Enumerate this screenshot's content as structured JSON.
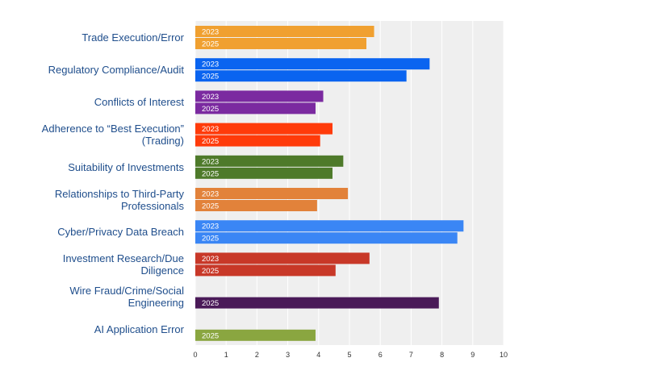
{
  "chart_data": {
    "type": "bar",
    "orientation": "horizontal",
    "title": "",
    "xlabel": "",
    "ylabel": "",
    "xlim": [
      0,
      10
    ],
    "ticks": [
      "0",
      "1",
      "2",
      "3",
      "4",
      "5",
      "6",
      "7",
      "8",
      "9",
      "10"
    ],
    "categories": [
      {
        "label": [
          "Trade Execution/Error"
        ],
        "color": "#f0a030",
        "bars": [
          {
            "year": "2023",
            "value": 5.8
          },
          {
            "year": "2025",
            "value": 5.55
          }
        ]
      },
      {
        "label": [
          "Regulatory Compliance/Audit"
        ],
        "color": "#0a64f0",
        "bars": [
          {
            "year": "2023",
            "value": 7.6
          },
          {
            "year": "2025",
            "value": 6.85
          }
        ]
      },
      {
        "label": [
          "Conflicts of Interest"
        ],
        "color": "#7b2aa0",
        "bars": [
          {
            "year": "2023",
            "value": 4.15
          },
          {
            "year": "2025",
            "value": 3.9
          }
        ]
      },
      {
        "label": [
          "Adherence to “Best Execution”",
          "(Trading)"
        ],
        "color": "#ff3b0a",
        "bars": [
          {
            "year": "2023",
            "value": 4.45
          },
          {
            "year": "2025",
            "value": 4.05
          }
        ]
      },
      {
        "label": [
          "Suitability of Investments"
        ],
        "color": "#4e7a2a",
        "bars": [
          {
            "year": "2023",
            "value": 4.8
          },
          {
            "year": "2025",
            "value": 4.45
          }
        ]
      },
      {
        "label": [
          "Relationships to Third-Party",
          "Professionals"
        ],
        "color": "#e2823a",
        "bars": [
          {
            "year": "2023",
            "value": 4.95
          },
          {
            "year": "2025",
            "value": 3.95
          }
        ]
      },
      {
        "label": [
          "Cyber/Privacy Data Breach"
        ],
        "color": "#3a86f5",
        "bars": [
          {
            "year": "2023",
            "value": 8.7
          },
          {
            "year": "2025",
            "value": 8.5
          }
        ]
      },
      {
        "label": [
          "Investment Research/Due",
          "Diligence"
        ],
        "color": "#c83828",
        "bars": [
          {
            "year": "2023",
            "value": 5.65
          },
          {
            "year": "2025",
            "value": 4.55
          }
        ]
      },
      {
        "label": [
          "Wire Fraud/Crime/Social",
          "Engineering"
        ],
        "color": "#4a1a58",
        "bars": [
          {
            "year": "2025",
            "value": 7.9
          }
        ]
      },
      {
        "label": [
          "AI Application Error"
        ],
        "color": "#8aa640",
        "bars": [
          {
            "year": "2025",
            "value": 3.9
          }
        ]
      }
    ]
  }
}
